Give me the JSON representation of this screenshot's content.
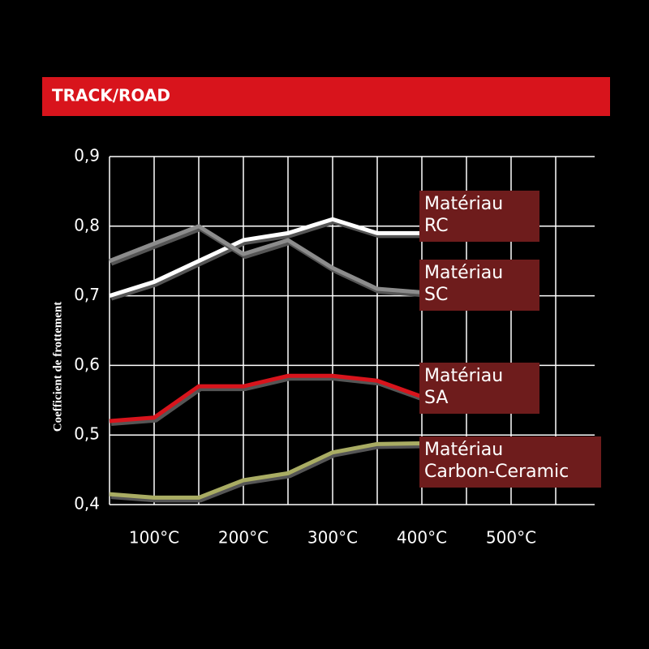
{
  "chart_data": {
    "type": "line",
    "title": "TRACK/ROAD",
    "ylabel": "Coefficient de frottement",
    "x": [
      50,
      100,
      150,
      200,
      250,
      300,
      350,
      400
    ],
    "series": [
      {
        "name": "Matériau\nRC",
        "color": "#ffffff",
        "values": [
          0.7,
          0.72,
          0.75,
          0.78,
          0.79,
          0.81,
          0.79,
          0.79
        ]
      },
      {
        "name": "Matériau\nSC",
        "color": "#8c8c8c",
        "values": [
          0.75,
          0.775,
          0.8,
          0.76,
          0.78,
          0.74,
          0.71,
          0.705
        ]
      },
      {
        "name": "Matériau\nSA",
        "color": "#d8141c",
        "values": [
          0.52,
          0.525,
          0.57,
          0.57,
          0.585,
          0.585,
          0.578,
          0.555
        ]
      },
      {
        "name": "Matériau\nCarbon-Ceramic",
        "color": "#a9ac63",
        "values": [
          0.415,
          0.41,
          0.41,
          0.435,
          0.445,
          0.475,
          0.487,
          0.488
        ]
      }
    ],
    "xlim": [
      50,
      600
    ],
    "xticks": [
      {
        "value": 100,
        "label": "100°C"
      },
      {
        "value": 200,
        "label": "200°C"
      },
      {
        "value": 300,
        "label": "300°C"
      },
      {
        "value": 400,
        "label": "400°C"
      },
      {
        "value": 500,
        "label": "500°C"
      }
    ],
    "xgrid_minor": [
      50,
      150,
      250,
      350,
      450,
      550
    ],
    "ylim": [
      0.4,
      0.9
    ],
    "yticks": [
      {
        "value": 0.4,
        "label": "0,4"
      },
      {
        "value": 0.5,
        "label": "0,5"
      },
      {
        "value": 0.6,
        "label": "0,6"
      },
      {
        "value": 0.7,
        "label": "0,7"
      },
      {
        "value": 0.8,
        "label": "0,8"
      },
      {
        "value": 0.9,
        "label": "0,9"
      }
    ],
    "grid": true,
    "background": "#000000",
    "banner_color": "#d8141c",
    "legend_color": "#6e1c1c"
  }
}
